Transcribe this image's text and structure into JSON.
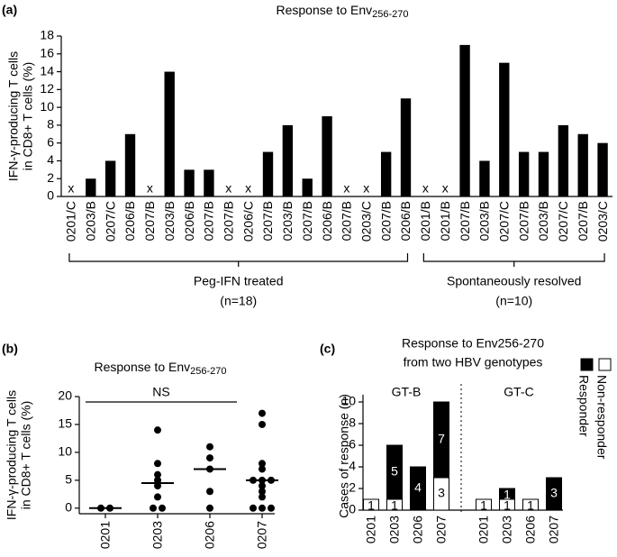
{
  "chart_data": [
    {
      "type": "bar",
      "panel_label": "(a)",
      "title": "Response to Env",
      "title_subscript": "256-270",
      "y_label": [
        "IFN-γ-producing T cells",
        "in CD8+ T cells (%)"
      ],
      "color": "#000000",
      "ylim": [
        0,
        18
      ],
      "yticks": [
        0,
        2,
        4,
        6,
        8,
        10,
        12,
        14,
        16,
        18
      ],
      "groups": [
        {
          "name": "Peg-IFN treated",
          "note": "(n=18)",
          "categories": [
            "0201/C",
            "0203/B",
            "0207/C",
            "0206/B",
            "0207/B",
            "0203/B",
            "0206/B",
            "0207/B",
            "0207/B",
            "0206/C",
            "0207/B",
            "0203/B",
            "0207/B",
            "0206/B",
            "0207/B",
            "0203/C",
            "0207/B",
            "0206/B"
          ],
          "values": [
            0,
            2,
            4,
            7,
            0,
            14,
            3,
            3,
            0,
            0,
            5,
            8,
            2,
            9,
            0,
            0,
            5,
            11
          ],
          "value_labels": [
            "x",
            null,
            null,
            null,
            "x",
            null,
            null,
            null,
            "x",
            "x",
            null,
            null,
            null,
            null,
            "x",
            "x",
            null,
            null
          ]
        },
        {
          "name": "Spontaneously  resolved",
          "note": "(n=10)",
          "categories": [
            "0201/B",
            "0201/B",
            "0207/B",
            "0203/B",
            "0207/C",
            "0207/B",
            "0203/B",
            "0207/C",
            "0207/B",
            "0203/C"
          ],
          "values": [
            0,
            0,
            17,
            4,
            15,
            5,
            5,
            8,
            7,
            6
          ],
          "value_labels": [
            "x",
            "x",
            null,
            null,
            null,
            null,
            null,
            null,
            null,
            null
          ]
        }
      ]
    },
    {
      "type": "dot",
      "panel_label": "(b)",
      "title": "Response to Env",
      "title_subscript": "256-270",
      "y_label": [
        "IFN-γ-producing T cells",
        "in CD8+ T cells (%)"
      ],
      "color": "#000000",
      "categories": [
        "0201",
        "0203",
        "0206",
        "0207"
      ],
      "points": [
        [
          0,
          0
        ],
        [
          0,
          0,
          2,
          4,
          5,
          6,
          8,
          14
        ],
        [
          0,
          3,
          7,
          9,
          11
        ],
        [
          0,
          0,
          0,
          2,
          3,
          4,
          5,
          5,
          5,
          7,
          8,
          15,
          17
        ]
      ],
      "medians": [
        0,
        4.5,
        7,
        5
      ],
      "annotation": "NS",
      "ylim": [
        -1,
        20
      ],
      "yticks": [
        0,
        5,
        10,
        15,
        20
      ]
    },
    {
      "type": "stacked_bar",
      "panel_label": "(c)",
      "title": [
        "Response to Env256-270",
        "from two HBV genotypes"
      ],
      "y_label": "Cases of response (n)",
      "groups": [
        {
          "name": "GT-B",
          "categories": [
            "0201",
            "0203",
            "0206",
            "0207"
          ]
        },
        {
          "name": "GT-C",
          "categories": [
            "0201",
            "0203",
            "0206",
            "0207"
          ]
        }
      ],
      "series": [
        {
          "name": "Non-responder",
          "color": "#ffffff",
          "values": [
            1,
            1,
            0,
            3,
            1,
            1,
            1,
            0
          ]
        },
        {
          "name": "Responder",
          "color": "#000000",
          "values": [
            0,
            5,
            4,
            7,
            0,
            1,
            0,
            3
          ]
        }
      ],
      "ylim": [
        0,
        10
      ],
      "yticks": [
        0,
        2,
        4,
        6,
        8,
        10
      ]
    }
  ]
}
